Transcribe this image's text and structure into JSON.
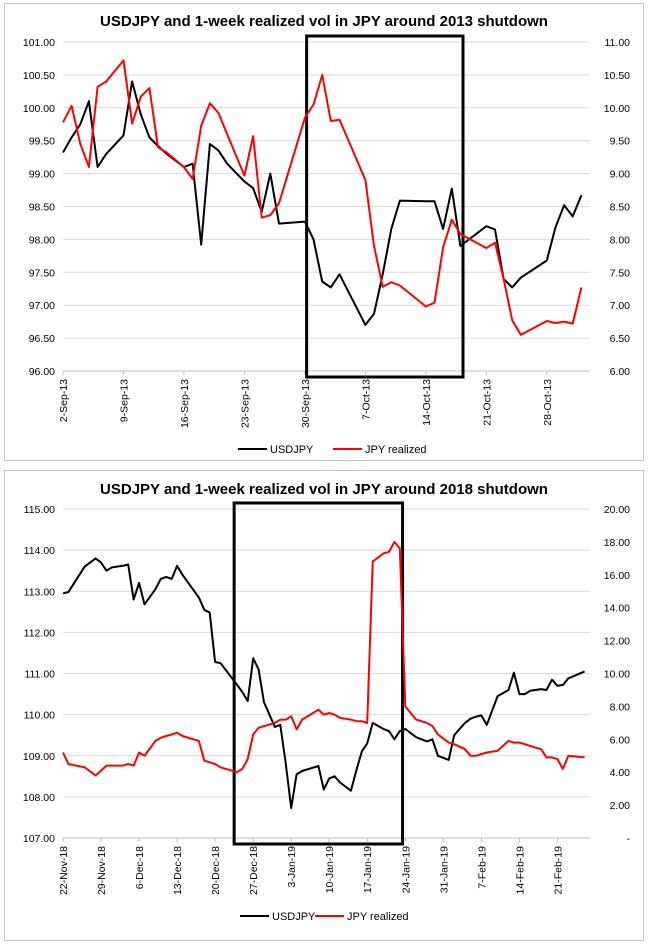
{
  "colors": {
    "usdjpy": "#000000",
    "jpy_realized": "#ff0000",
    "grid": "#d9d9d9"
  },
  "chart_data": [
    {
      "type": "line",
      "title": "USDJPY and 1-week realized vol in JPY around 2013 shutdown",
      "xlabel": "",
      "ylabel_left": "",
      "ylabel_right": "",
      "ylim_left": [
        96.0,
        101.0
      ],
      "ylim_right": [
        6.0,
        11.0
      ],
      "left_ticks": [
        "96.00",
        "96.50",
        "97.00",
        "97.50",
        "98.00",
        "98.50",
        "99.00",
        "99.50",
        "100.00",
        "100.50",
        "101.00"
      ],
      "right_ticks": [
        "6.00",
        "6.50",
        "7.00",
        "7.50",
        "8.00",
        "8.50",
        "9.00",
        "9.50",
        "10.00",
        "10.50",
        "11.00"
      ],
      "x_start": "2-Sep-13",
      "x_ticks": [
        "2-Sep-13",
        "9-Sep-13",
        "16-Sep-13",
        "23-Sep-13",
        "30-Sep-13",
        "7-Oct-13",
        "14-Oct-13",
        "21-Oct-13",
        "28-Oct-13"
      ],
      "x_tick_days": [
        0,
        7,
        14,
        21,
        28,
        35,
        42,
        49,
        56
      ],
      "x_days": [
        0,
        1,
        2,
        3,
        4,
        5,
        7,
        8,
        9,
        10,
        11,
        12,
        14,
        15,
        16,
        17,
        18,
        19,
        21,
        22,
        23,
        24,
        25,
        28,
        29,
        30,
        31,
        32,
        35,
        36,
        37,
        38,
        39,
        42,
        43,
        44,
        45,
        46,
        49,
        50,
        51,
        52,
        53,
        56,
        57,
        58,
        59,
        60
      ],
      "highlight_days": [
        28.2,
        46.3
      ],
      "legend": "bottom-center",
      "grid": true,
      "series": [
        {
          "name": "USDJPY",
          "axis": "left",
          "color": "#000000",
          "values": [
            99.32,
            99.55,
            99.75,
            100.1,
            99.1,
            99.3,
            99.58,
            100.4,
            99.9,
            99.55,
            99.42,
            99.3,
            99.1,
            99.15,
            97.92,
            99.45,
            99.35,
            99.15,
            98.88,
            98.78,
            98.42,
            99.0,
            98.24,
            98.27,
            98.0,
            97.36,
            97.27,
            97.47,
            96.7,
            96.87,
            97.47,
            98.16,
            98.59,
            98.58,
            98.58,
            98.16,
            98.77,
            97.9,
            98.2,
            98.15,
            97.4,
            97.27,
            97.42,
            97.68,
            98.18,
            98.52,
            98.35,
            98.67
          ]
        },
        {
          "name": "JPY realized",
          "axis": "right",
          "color": "#ff0000",
          "values": [
            9.78,
            10.03,
            9.45,
            9.1,
            10.32,
            10.4,
            10.72,
            9.76,
            10.17,
            10.3,
            9.4,
            9.32,
            9.1,
            8.92,
            9.73,
            10.07,
            9.92,
            9.6,
            8.97,
            9.57,
            8.33,
            8.37,
            8.55,
            9.85,
            10.05,
            10.5,
            9.8,
            9.82,
            8.9,
            7.9,
            7.28,
            7.35,
            7.3,
            6.98,
            7.04,
            7.88,
            8.3,
            8.08,
            7.87,
            7.95,
            7.4,
            6.77,
            6.55,
            6.76,
            6.73,
            6.75,
            6.72,
            7.27
          ]
        }
      ]
    },
    {
      "type": "line",
      "title": "USDJPY and 1-week realized vol in JPY around 2018 shutdown",
      "xlabel": "",
      "ylabel_left": "",
      "ylabel_right": "",
      "ylim_left": [
        107.0,
        115.0
      ],
      "ylim_right": [
        0,
        20.0
      ],
      "left_ticks": [
        "107.00",
        "108.00",
        "109.00",
        "110.00",
        "111.00",
        "112.00",
        "113.00",
        "114.00",
        "115.00"
      ],
      "right_ticks": [
        "-",
        "2.00",
        "4.00",
        "6.00",
        "8.00",
        "10.00",
        "12.00",
        "14.00",
        "16.00",
        "18.00",
        "20.00"
      ],
      "x_start": "22-Nov-18",
      "x_ticks": [
        "22-Nov-18",
        "29-Nov-18",
        "6-Dec-18",
        "13-Dec-18",
        "20-Dec-18",
        "27-Dec-18",
        "3-Jan-19",
        "10-Jan-19",
        "17-Jan-19",
        "24-Jan-19",
        "31-Jan-19",
        "7-Feb-19",
        "14-Feb-19",
        "21-Feb-19"
      ],
      "x_tick_days": [
        0,
        7,
        14,
        21,
        28,
        35,
        42,
        49,
        56,
        63,
        70,
        77,
        84,
        91
      ],
      "x_days": [
        0,
        1,
        4,
        6,
        7,
        8,
        9,
        11,
        12,
        13,
        14,
        15,
        17,
        18,
        19,
        20,
        21,
        22,
        25,
        26,
        27,
        28,
        29,
        32,
        33,
        34,
        35,
        36,
        37,
        39,
        40,
        41,
        42,
        43,
        44,
        47,
        48,
        49,
        50,
        51,
        53,
        54,
        55,
        56,
        57,
        59,
        60,
        61,
        62,
        63,
        65,
        66,
        67,
        68,
        69,
        71,
        72,
        74,
        75,
        76,
        77,
        78,
        80,
        82,
        83,
        84,
        85,
        86,
        88,
        89,
        90,
        91,
        92,
        93,
        96
      ],
      "highlight_days": [
        31.5,
        62.5
      ],
      "legend": "bottom-center",
      "grid": true,
      "series": [
        {
          "name": "USDJPY",
          "axis": "left",
          "color": "#000000",
          "values": [
            112.95,
            112.98,
            113.6,
            113.8,
            113.7,
            113.5,
            113.58,
            113.62,
            113.65,
            112.8,
            113.2,
            112.68,
            113.05,
            113.3,
            113.35,
            113.3,
            113.62,
            113.4,
            112.85,
            112.55,
            112.48,
            111.28,
            111.25,
            110.73,
            110.55,
            110.33,
            111.37,
            111.1,
            110.3,
            109.7,
            109.75,
            108.8,
            107.73,
            108.55,
            108.63,
            108.75,
            108.18,
            108.45,
            108.5,
            108.35,
            108.15,
            108.65,
            109.1,
            109.3,
            109.8,
            109.65,
            109.6,
            109.4,
            109.6,
            109.65,
            109.45,
            109.4,
            109.35,
            109.4,
            109.0,
            108.9,
            109.5,
            109.8,
            109.9,
            109.95,
            109.98,
            109.75,
            110.45,
            110.6,
            111.02,
            110.5,
            110.5,
            110.58,
            110.62,
            110.6,
            110.85,
            110.7,
            110.72,
            110.88,
            111.05
          ]
        },
        {
          "name": "JPY realized",
          "axis": "right",
          "color": "#ff0000",
          "values": [
            5.2,
            4.5,
            4.3,
            3.8,
            4.1,
            4.4,
            4.4,
            4.4,
            4.5,
            4.4,
            5.2,
            5.0,
            5.9,
            6.1,
            6.2,
            6.3,
            6.4,
            6.2,
            5.9,
            4.7,
            4.6,
            4.5,
            4.3,
            4.0,
            4.2,
            4.8,
            6.3,
            6.7,
            6.8,
            7.0,
            7.2,
            7.2,
            7.4,
            6.6,
            7.2,
            7.8,
            7.5,
            7.6,
            7.5,
            7.3,
            7.2,
            7.1,
            7.1,
            7.0,
            16.8,
            17.3,
            17.4,
            18.0,
            17.6,
            8.0,
            7.2,
            7.1,
            7.0,
            6.8,
            6.3,
            5.8,
            5.7,
            5.4,
            5.0,
            5.0,
            5.1,
            5.2,
            5.3,
            5.9,
            5.8,
            5.8,
            5.7,
            5.6,
            5.4,
            4.9,
            4.9,
            4.8,
            4.2,
            5.0,
            4.9
          ]
        }
      ]
    }
  ]
}
